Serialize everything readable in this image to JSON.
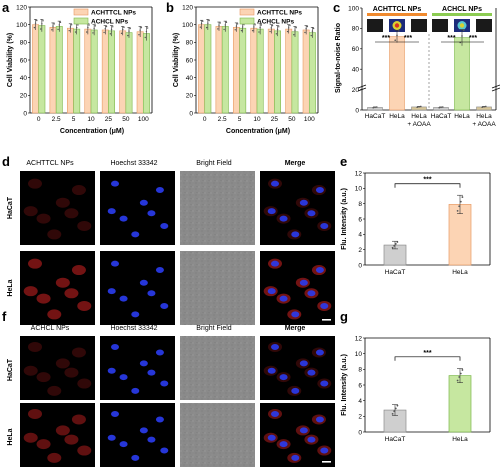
{
  "panels": {
    "a": {
      "label": "a"
    },
    "b": {
      "label": "b"
    },
    "c": {
      "label": "c"
    },
    "d": {
      "label": "d"
    },
    "e": {
      "label": "e"
    },
    "f": {
      "label": "f"
    },
    "g": {
      "label": "g"
    }
  },
  "micro_d": {
    "columns": [
      "ACHTTCL NPs",
      "Hoechst 33342",
      "Bright Field",
      "Merge"
    ],
    "rows": [
      "HaCaT",
      "HeLa"
    ]
  },
  "micro_f": {
    "columns": [
      "ACHCL NPs",
      "Hoechst 33342",
      "Bright Field",
      "Merge"
    ],
    "rows": [
      "HaCaT",
      "HeLa"
    ]
  },
  "colors": {
    "orange_fill": "#fcd4b4",
    "orange_edge": "#e89a63",
    "green_fill": "#c6e7a0",
    "green_edge": "#7cb84a",
    "gray_fill": "#cfcfcf",
    "gray_edge": "#8c8c8c",
    "tan_fill": "#d8c79a",
    "header_orange": "#f08a2e",
    "header_green": "#8ccc52"
  },
  "chart_data": [
    {
      "id": "a",
      "type": "bar",
      "categories": [
        "0",
        "2.5",
        "5",
        "10",
        "25",
        "50",
        "100"
      ],
      "series": [
        {
          "name": "ACHTTCL NPs",
          "values": [
            100,
            97,
            96,
            95,
            94,
            93,
            92
          ],
          "errors": [
            6,
            5,
            5,
            6,
            5,
            5,
            6
          ]
        },
        {
          "name": "ACHCL NPs",
          "values": [
            99,
            98,
            95,
            94,
            93,
            91,
            90
          ],
          "errors": [
            7,
            6,
            6,
            6,
            6,
            6,
            8
          ]
        }
      ],
      "xlabel": "Concentration (μM)",
      "ylabel": "Cell Viability (%)",
      "ylim": [
        0,
        120
      ],
      "yticks": [
        0,
        20,
        40,
        60,
        80,
        100,
        120
      ],
      "legend": "top-right"
    },
    {
      "id": "b",
      "type": "bar",
      "categories": [
        "0",
        "2.5",
        "5",
        "10",
        "25",
        "50",
        "100"
      ],
      "series": [
        {
          "name": "ACHTTCL NPs",
          "values": [
            100,
            98,
            97,
            96,
            95,
            95,
            94
          ],
          "errors": [
            5,
            5,
            5,
            5,
            5,
            5,
            5
          ]
        },
        {
          "name": "ACHCL NPs",
          "values": [
            100,
            98,
            96,
            95,
            93,
            92,
            91
          ],
          "errors": [
            6,
            6,
            5,
            6,
            6,
            6,
            6
          ]
        }
      ],
      "xlabel": "Concentration (μM)",
      "ylabel": "Cell Viability (%)",
      "ylim": [
        0,
        120
      ],
      "yticks": [
        0,
        20,
        40,
        60,
        80,
        100,
        120
      ],
      "legend": "top-right"
    },
    {
      "id": "c",
      "type": "bar",
      "groups": [
        "ACHTTCL NPs",
        "ACHCL NPs"
      ],
      "categories": [
        "HaCaT",
        "HeLa",
        "HeLa + AOAA",
        "HaCaT",
        "HeLa",
        "HeLa + AOAA"
      ],
      "values": [
        2.5,
        72,
        3,
        2.5,
        71,
        3
      ],
      "errors": [
        0.5,
        6,
        0.5,
        0.5,
        8,
        0.5
      ],
      "ylabel": "Signal-to-noise Ratio",
      "ylim": [
        0,
        100
      ],
      "yticks": [
        0,
        20,
        40,
        60,
        80,
        100
      ],
      "broken_axis": true,
      "annotations": [
        "***",
        "***",
        "***",
        "***"
      ]
    },
    {
      "id": "e",
      "type": "bar",
      "categories": [
        "HaCaT",
        "HeLa"
      ],
      "values": [
        2.6,
        7.9
      ],
      "errors": [
        0.5,
        1.2
      ],
      "ylabel": "Flu. Intensity (a.u.)",
      "ylim": [
        0,
        12
      ],
      "yticks": [
        0,
        2,
        4,
        6,
        8,
        10,
        12
      ],
      "annotations": [
        "***"
      ]
    },
    {
      "id": "g",
      "type": "bar",
      "categories": [
        "HaCaT",
        "HeLa"
      ],
      "values": [
        2.8,
        7.2
      ],
      "errors": [
        0.7,
        0.9
      ],
      "ylabel": "Flu. Intensity (a.u.)",
      "ylim": [
        0,
        12
      ],
      "yticks": [
        0,
        2,
        4,
        6,
        8,
        10,
        12
      ],
      "annotations": [
        "***"
      ]
    }
  ]
}
